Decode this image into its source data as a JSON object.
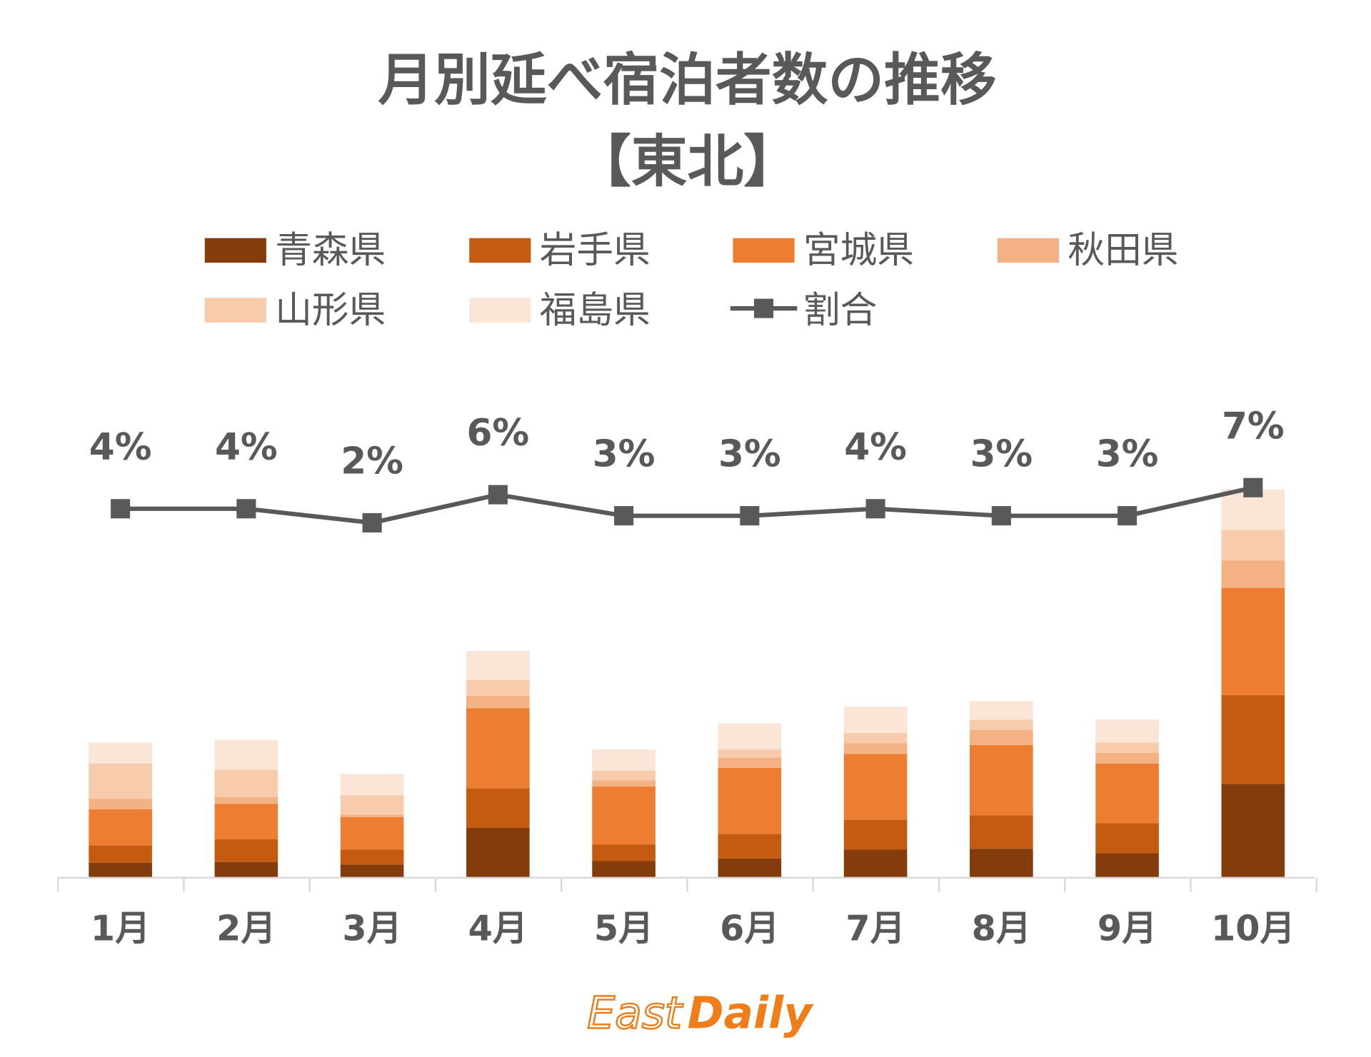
{
  "chart_data": {
    "type": "bar",
    "stacked": true,
    "title": [
      "月別延べ宿泊者数の推移",
      "【東北】"
    ],
    "xlabel": "",
    "ylabel": "",
    "grid": false,
    "legend_position": "top",
    "categories": [
      "1月",
      "2月",
      "3月",
      "4月",
      "5月",
      "6月",
      "7月",
      "8月",
      "9月",
      "10月"
    ],
    "value_unit": "relative (no y-axis shown)",
    "series": [
      {
        "name": "青森県",
        "color": "#843C0C",
        "values": [
          17,
          18,
          15,
          57,
          19,
          22,
          32,
          33,
          28,
          107
        ]
      },
      {
        "name": "岩手県",
        "color": "#C55A11",
        "values": [
          20,
          26,
          17,
          45,
          19,
          28,
          34,
          38,
          34,
          101
        ]
      },
      {
        "name": "宮城県",
        "color": "#ED7D31",
        "values": [
          41,
          40,
          37,
          91,
          66,
          75,
          75,
          80,
          68,
          122
        ]
      },
      {
        "name": "秋田県",
        "color": "#F4B183",
        "values": [
          12,
          8,
          3,
          14,
          7,
          12,
          12,
          17,
          12,
          31
        ]
      },
      {
        "name": "山形県",
        "color": "#F8CBAD",
        "values": [
          40,
          31,
          22,
          18,
          11,
          9,
          12,
          12,
          12,
          35
        ]
      },
      {
        "name": "福島県",
        "color": "#FBE5D6",
        "values": [
          24,
          34,
          24,
          33,
          24,
          30,
          30,
          21,
          26,
          46
        ]
      }
    ],
    "line_series": {
      "name": "割合",
      "type": "line",
      "color": "#595959",
      "values": [
        4,
        4,
        2,
        6,
        3,
        3,
        4,
        3,
        3,
        7
      ],
      "labels": [
        "4%",
        "4%",
        "2%",
        "6%",
        "3%",
        "3%",
        "4%",
        "3%",
        "3%",
        "7%"
      ]
    }
  },
  "logo": {
    "text": "East Daily",
    "part1": "East",
    "part2": "Daily",
    "color": "#EE7D1A"
  }
}
